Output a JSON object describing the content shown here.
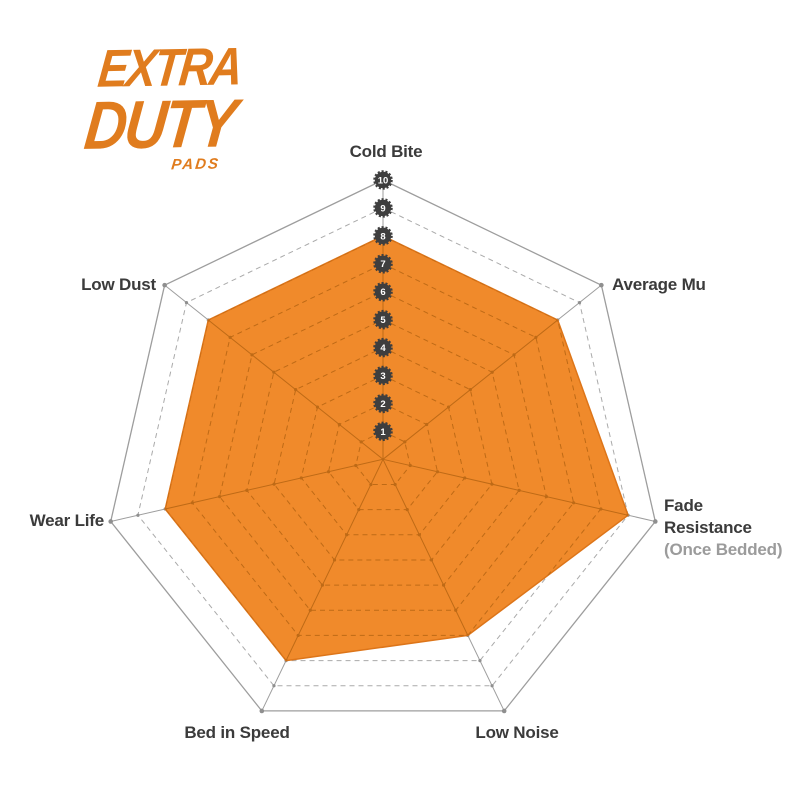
{
  "page": {
    "background": "#ffffff"
  },
  "logo": {
    "line1": "EXTRA",
    "line2": "DUTY",
    "line3": "PADS",
    "color": "#E07C1E"
  },
  "chart_data": {
    "type": "radar",
    "title": "",
    "categories": [
      "Cold Bite",
      "Average Mu",
      "Fade Resistance (Once Bedded)",
      "Low Noise",
      "Bed in Speed",
      "Wear Life",
      "Low Dust"
    ],
    "values": [
      8,
      8,
      9,
      7,
      8,
      8,
      8
    ],
    "axis_labels": [
      [
        "Cold Bite"
      ],
      [
        "Average Mu"
      ],
      [
        "Fade",
        "Resistance",
        "(Once Bedded)"
      ],
      [
        "Low Noise"
      ],
      [
        "Bed in Speed"
      ],
      [
        "Wear Life"
      ],
      [
        "Low Dust"
      ]
    ],
    "scale": {
      "min": 0,
      "max": 10,
      "ticks": [
        "10",
        "9",
        "8",
        "7",
        "6",
        "5",
        "4",
        "3",
        "2",
        "1"
      ]
    },
    "rings": 10,
    "grid_shape": "heptagon",
    "legend": "none",
    "colors": {
      "fill": "#F08A2B",
      "fill_stroke": "#DD7519",
      "grid": "#9d9d9d",
      "grid_dashed": "#aaaaaa",
      "grid_inside": "#BE6A16",
      "tick_dot": "#8f8f8f",
      "badge": "#3E3E3E",
      "badge_text": "#ffffff",
      "label": "#3B3B3B",
      "sub_label": "#9B9B9B"
    }
  }
}
